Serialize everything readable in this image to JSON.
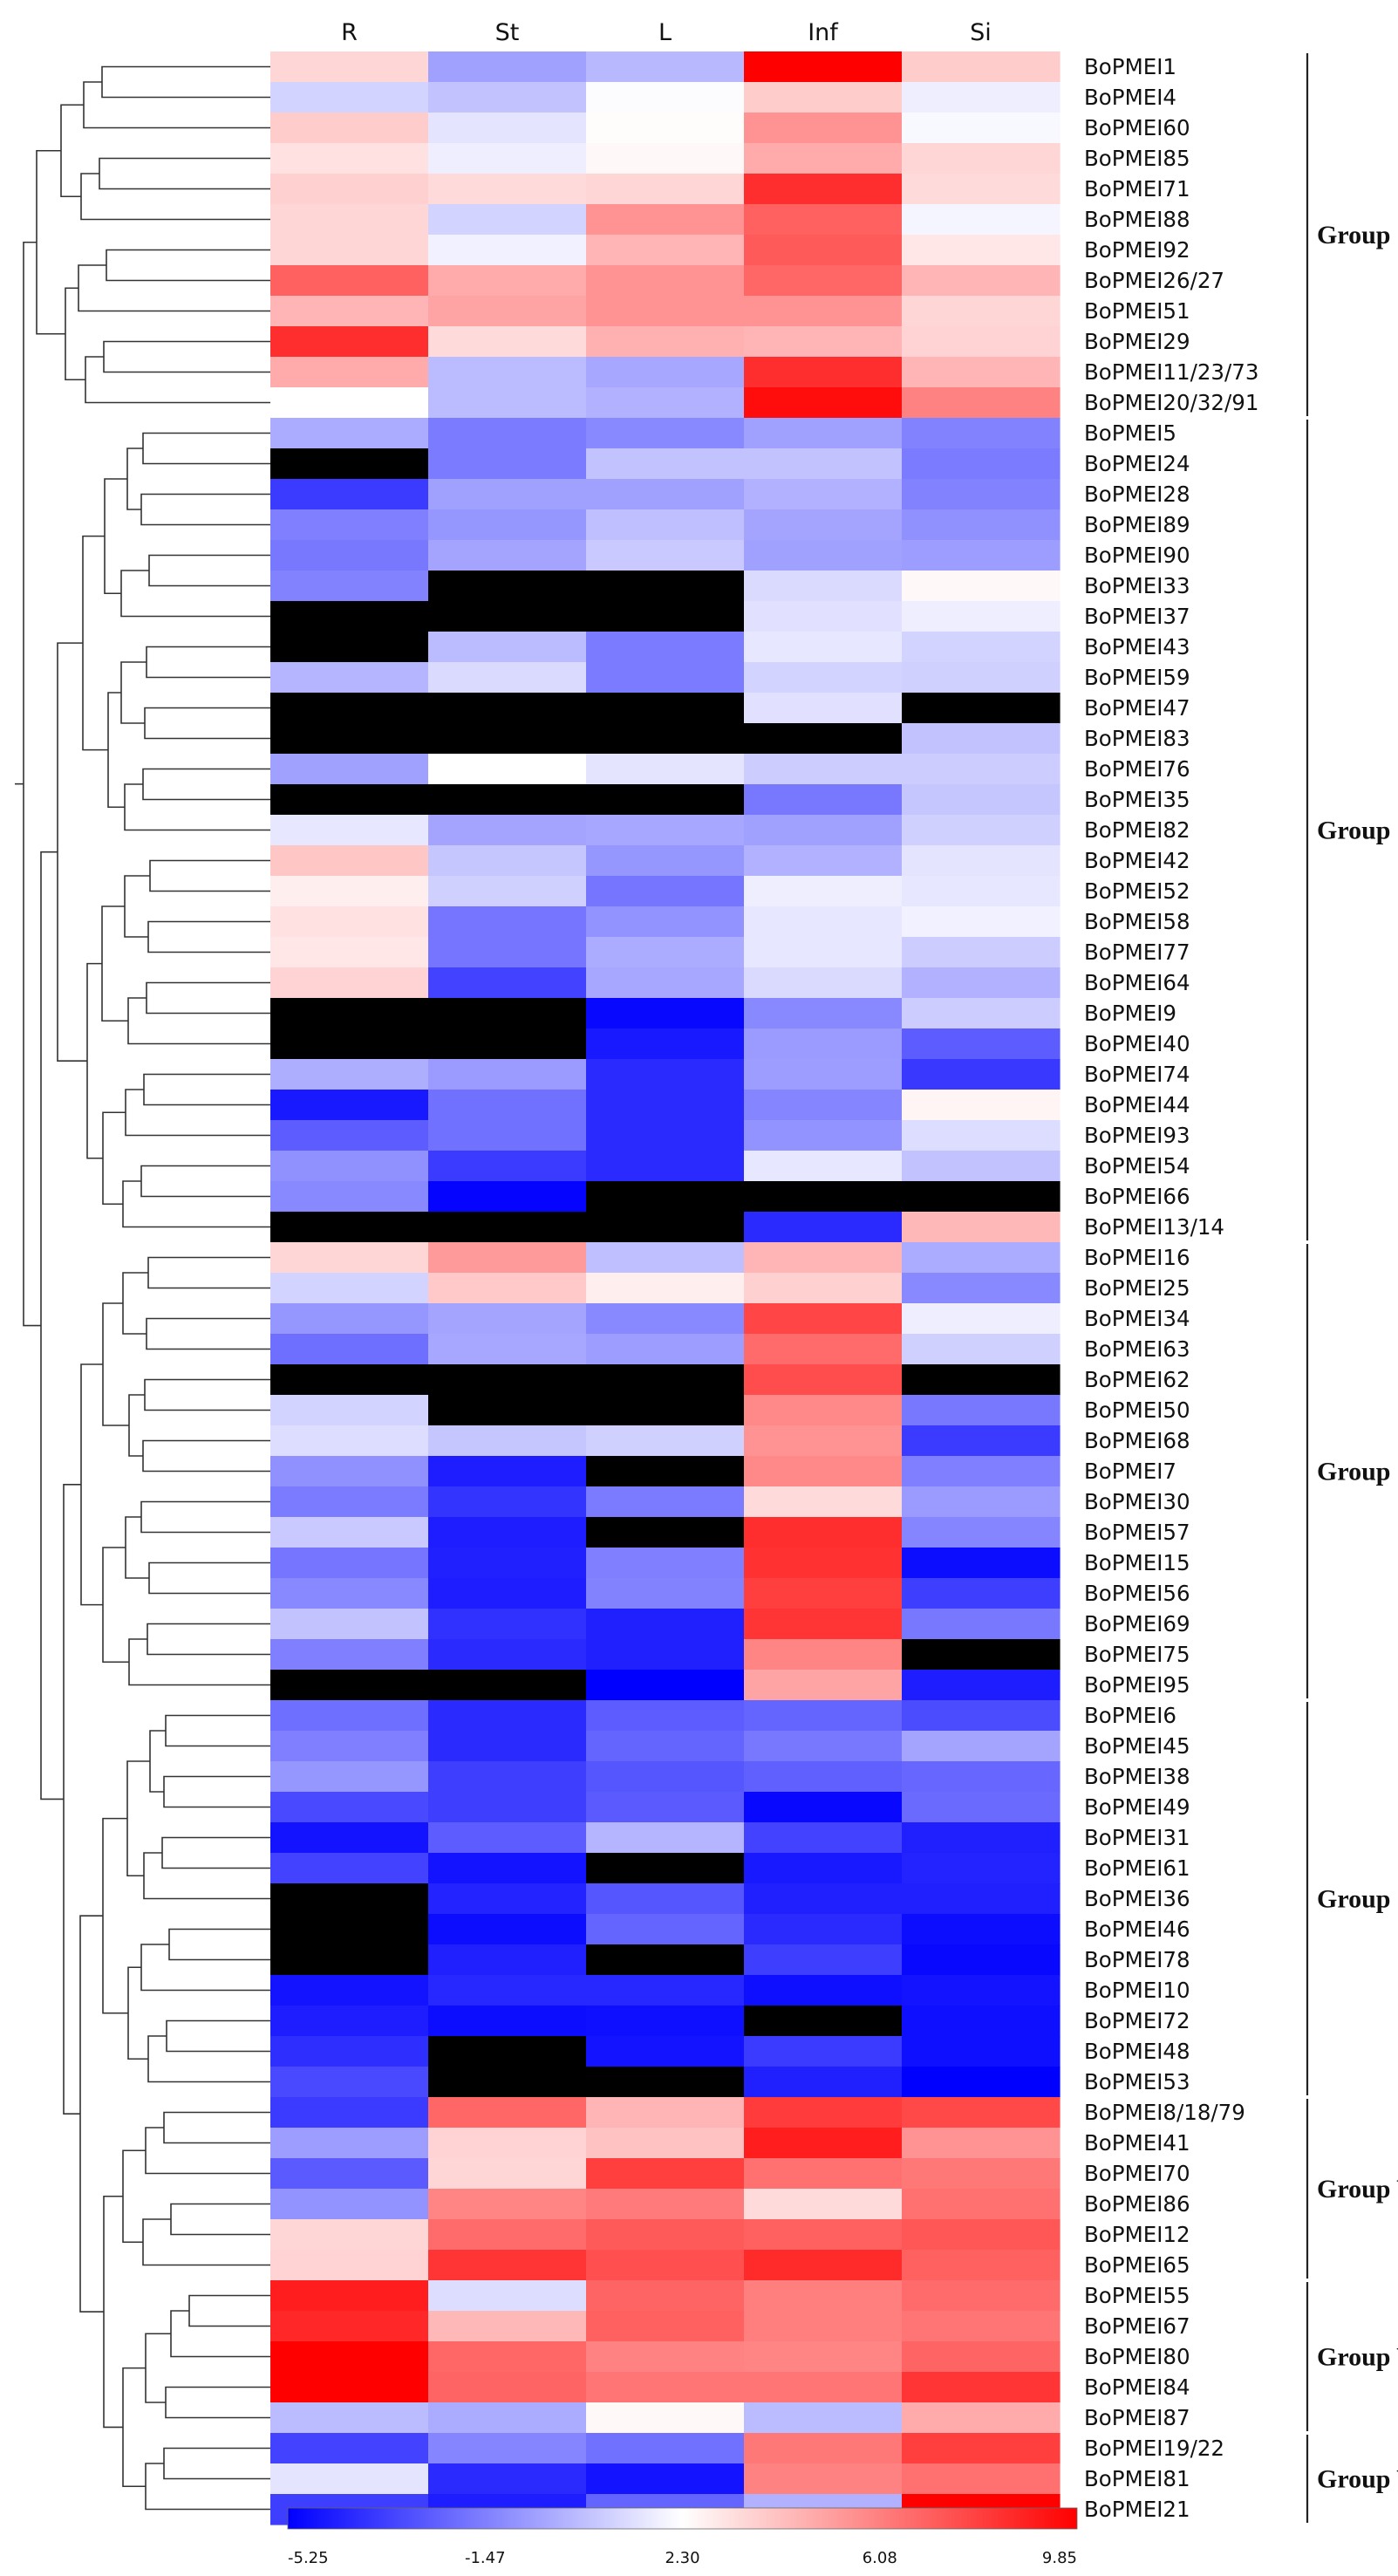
{
  "chart_data": {
    "type": "heatmap",
    "title": "",
    "xlabel": "",
    "ylabel": "",
    "columns": [
      "R",
      "St",
      "L",
      "Inf",
      "Si"
    ],
    "rows": [
      "BoPMEI1",
      "BoPMEI4",
      "BoPMEI60",
      "BoPMEI85",
      "BoPMEI71",
      "BoPMEI88",
      "BoPMEI92",
      "BoPMEI26/27",
      "BoPMEI51",
      "BoPMEI29",
      "BoPMEI11/23/73",
      "BoPMEI20/32/91",
      "BoPMEI5",
      "BoPMEI24",
      "BoPMEI28",
      "BoPMEI89",
      "BoPMEI90",
      "BoPMEI33",
      "BoPMEI37",
      "BoPMEI43",
      "BoPMEI59",
      "BoPMEI47",
      "BoPMEI83",
      "BoPMEI76",
      "BoPMEI35",
      "BoPMEI82",
      "BoPMEI42",
      "BoPMEI52",
      "BoPMEI58",
      "BoPMEI77",
      "BoPMEI64",
      "BoPMEI9",
      "BoPMEI40",
      "BoPMEI74",
      "BoPMEI44",
      "BoPMEI93",
      "BoPMEI54",
      "BoPMEI66",
      "BoPMEI13/14",
      "BoPMEI16",
      "BoPMEI25",
      "BoPMEI34",
      "BoPMEI63",
      "BoPMEI62",
      "BoPMEI50",
      "BoPMEI68",
      "BoPMEI7",
      "BoPMEI30",
      "BoPMEI57",
      "BoPMEI15",
      "BoPMEI56",
      "BoPMEI69",
      "BoPMEI75",
      "BoPMEI95",
      "BoPMEI6",
      "BoPMEI45",
      "BoPMEI38",
      "BoPMEI49",
      "BoPMEI31",
      "BoPMEI61",
      "BoPMEI36",
      "BoPMEI46",
      "BoPMEI78",
      "BoPMEI10",
      "BoPMEI72",
      "BoPMEI48",
      "BoPMEI53",
      "BoPMEI8/18/79",
      "BoPMEI41",
      "BoPMEI70",
      "BoPMEI86",
      "BoPMEI12",
      "BoPMEI65",
      "BoPMEI55",
      "BoPMEI67",
      "BoPMEI80",
      "BoPMEI84",
      "BoPMEI87",
      "BoPMEI19/22",
      "BoPMEI81",
      "BoPMEI21"
    ],
    "values": [
      [
        3.5,
        -0.5,
        0.2,
        9.85,
        3.8
      ],
      [
        1.0,
        0.5,
        2.2,
        3.8,
        1.8
      ],
      [
        3.8,
        1.5,
        2.4,
        5.5,
        2.1
      ],
      [
        3.2,
        1.8,
        2.5,
        4.8,
        3.5
      ],
      [
        3.7,
        3.4,
        3.5,
        8.5,
        3.4
      ],
      [
        3.5,
        1.0,
        5.5,
        7.0,
        2.0
      ],
      [
        3.5,
        1.9,
        4.5,
        7.2,
        3.0
      ],
      [
        7.0,
        4.8,
        5.5,
        6.8,
        4.5
      ],
      [
        4.5,
        5.0,
        5.5,
        5.5,
        3.5
      ],
      [
        8.5,
        3.4,
        4.6,
        4.5,
        3.6
      ],
      [
        4.8,
        0.3,
        -0.3,
        8.5,
        4.5
      ],
      [
        2.3,
        0.3,
        0.0,
        9.5,
        6.0
      ],
      [
        -0.2,
        -1.6,
        -1.2,
        -0.5,
        -1.4
      ],
      [
        null,
        -1.6,
        0.5,
        0.5,
        -1.6
      ],
      [
        -3.5,
        -0.5,
        -0.5,
        0.0,
        -1.4
      ],
      [
        -1.5,
        -0.8,
        0.4,
        -0.4,
        -1.0
      ],
      [
        -1.7,
        -0.4,
        0.7,
        -0.5,
        -0.6
      ],
      [
        -1.4,
        null,
        null,
        1.2,
        2.5
      ],
      [
        null,
        null,
        null,
        1.4,
        1.8
      ],
      [
        null,
        0.3,
        -1.6,
        1.6,
        1.0
      ],
      [
        0.1,
        1.2,
        -1.6,
        1.0,
        0.9
      ],
      [
        null,
        null,
        null,
        1.4,
        null
      ],
      [
        null,
        null,
        null,
        null,
        0.5
      ],
      [
        -0.5,
        2.3,
        1.5,
        0.8,
        0.8
      ],
      [
        null,
        null,
        null,
        -1.7,
        0.6
      ],
      [
        1.6,
        -0.4,
        -0.3,
        -0.5,
        0.9
      ],
      [
        4.0,
        0.6,
        -0.8,
        0.0,
        1.5
      ],
      [
        2.8,
        0.9,
        -1.8,
        1.8,
        1.6
      ],
      [
        3.2,
        -1.8,
        -0.9,
        1.6,
        1.9
      ],
      [
        3.0,
        -1.8,
        -0.2,
        1.6,
        0.8
      ],
      [
        3.6,
        -3.3,
        -0.3,
        1.2,
        0.0
      ],
      [
        null,
        null,
        -5.0,
        -1.2,
        0.8
      ],
      [
        null,
        null,
        -4.5,
        -0.7,
        -2.5
      ],
      [
        -0.1,
        -0.7,
        -4.0,
        -0.6,
        -3.6
      ],
      [
        -4.5,
        -1.9,
        -4.0,
        -1.3,
        2.6
      ],
      [
        -2.5,
        -1.9,
        -4.0,
        -0.9,
        1.3
      ],
      [
        -1.0,
        -3.5,
        -4.0,
        1.6,
        0.5
      ],
      [
        -1.2,
        -5.1,
        null,
        null,
        null
      ],
      [
        null,
        null,
        null,
        -4.0,
        4.4
      ],
      [
        3.5,
        5.3,
        0.4,
        4.5,
        -0.2
      ],
      [
        1.0,
        3.9,
        2.8,
        3.7,
        -1.2
      ],
      [
        -0.8,
        -0.4,
        -1.2,
        7.8,
        1.8
      ],
      [
        -2.0,
        -0.3,
        -0.6,
        6.7,
        0.9
      ],
      [
        null,
        null,
        null,
        7.6,
        null
      ],
      [
        1.0,
        null,
        null,
        5.8,
        -1.7
      ],
      [
        1.3,
        0.6,
        0.9,
        5.5,
        -3.5
      ],
      [
        -1.0,
        -4.4,
        null,
        5.8,
        -1.5
      ],
      [
        -1.6,
        -3.7,
        -1.6,
        3.4,
        -0.7
      ],
      [
        0.7,
        -4.4,
        null,
        8.5,
        -1.3
      ],
      [
        -1.8,
        -4.3,
        -1.5,
        8.4,
        -4.9
      ],
      [
        -1.2,
        -4.4,
        -1.4,
        8.0,
        -3.4
      ],
      [
        0.5,
        -3.8,
        -4.3,
        8.3,
        -1.7
      ],
      [
        -1.5,
        -4.0,
        -4.3,
        5.9,
        null
      ],
      [
        null,
        null,
        -5.25,
        5.0,
        -4.4
      ],
      [
        -2.0,
        -4.0,
        -2.5,
        -2.3,
        -3.0
      ],
      [
        -1.5,
        -4.0,
        -2.3,
        -1.7,
        -0.4
      ],
      [
        -0.8,
        -3.4,
        -2.7,
        -2.4,
        -2.2
      ],
      [
        -3.1,
        -3.4,
        -2.6,
        -5.0,
        -2.1
      ],
      [
        -4.7,
        -2.5,
        0.1,
        -3.3,
        -4.3
      ],
      [
        -3.3,
        -4.7,
        null,
        -4.5,
        -4.2
      ],
      [
        null,
        -4.2,
        -2.7,
        -4.3,
        -4.3
      ],
      [
        null,
        -4.9,
        -2.3,
        -4.0,
        -4.9
      ],
      [
        null,
        -4.3,
        null,
        -3.4,
        -5.0
      ],
      [
        -4.7,
        -4.1,
        -4.1,
        -4.8,
        -4.7
      ],
      [
        -4.4,
        -4.9,
        -4.8,
        null,
        -4.8
      ],
      [
        -3.9,
        null,
        -4.7,
        -3.5,
        -4.8
      ],
      [
        -3.1,
        null,
        null,
        -4.3,
        -5.25
      ],
      [
        -3.5,
        6.8,
        4.5,
        8.1,
        7.7
      ],
      [
        -0.6,
        3.6,
        4.1,
        9.0,
        5.5
      ],
      [
        -2.6,
        3.5,
        8.0,
        6.5,
        6.3
      ],
      [
        -0.9,
        5.9,
        6.2,
        3.4,
        6.5
      ],
      [
        3.5,
        6.7,
        7.2,
        7.0,
        7.3
      ],
      [
        3.6,
        8.3,
        7.5,
        8.6,
        7.0
      ],
      [
        9.0,
        1.3,
        6.9,
        6.1,
        6.7
      ],
      [
        8.7,
        4.4,
        7.0,
        6.1,
        6.4
      ],
      [
        9.85,
        6.8,
        6.0,
        5.9,
        6.9
      ],
      [
        9.85,
        6.9,
        6.4,
        6.4,
        8.3
      ],
      [
        0.3,
        -0.2,
        2.5,
        0.3,
        4.8
      ],
      [
        -3.3,
        -1.3,
        -1.9,
        6.3,
        8.0
      ],
      [
        1.5,
        -4.0,
        -4.7,
        6.0,
        6.5
      ],
      [
        -3.4,
        -4.4,
        -2.3,
        0.0,
        9.85
      ]
    ],
    "missing_color": "#000000",
    "color_scale": {
      "low_color": "#0000ff",
      "mid_color": "#ffffff",
      "high_color": "#ff0000",
      "min": -5.25,
      "mid": 2.3,
      "max": 9.85,
      "ticks": [
        "-5.25",
        "-1.47",
        "2.30",
        "6.08",
        "9.85"
      ]
    },
    "groups": [
      {
        "label": "Group I",
        "first": 0,
        "last": 11
      },
      {
        "label": "Group II",
        "first": 12,
        "last": 38
      },
      {
        "label": "Group III",
        "first": 39,
        "last": 53
      },
      {
        "label": "Group IV",
        "first": 54,
        "last": 66
      },
      {
        "label": "Group V",
        "first": 67,
        "last": 72
      },
      {
        "label": "Group VI",
        "first": 73,
        "last": 77
      },
      {
        "label": "Group VII",
        "first": 78,
        "last": 80
      }
    ],
    "dendrogram": "hierarchical clustering tree of rows (left side)"
  }
}
